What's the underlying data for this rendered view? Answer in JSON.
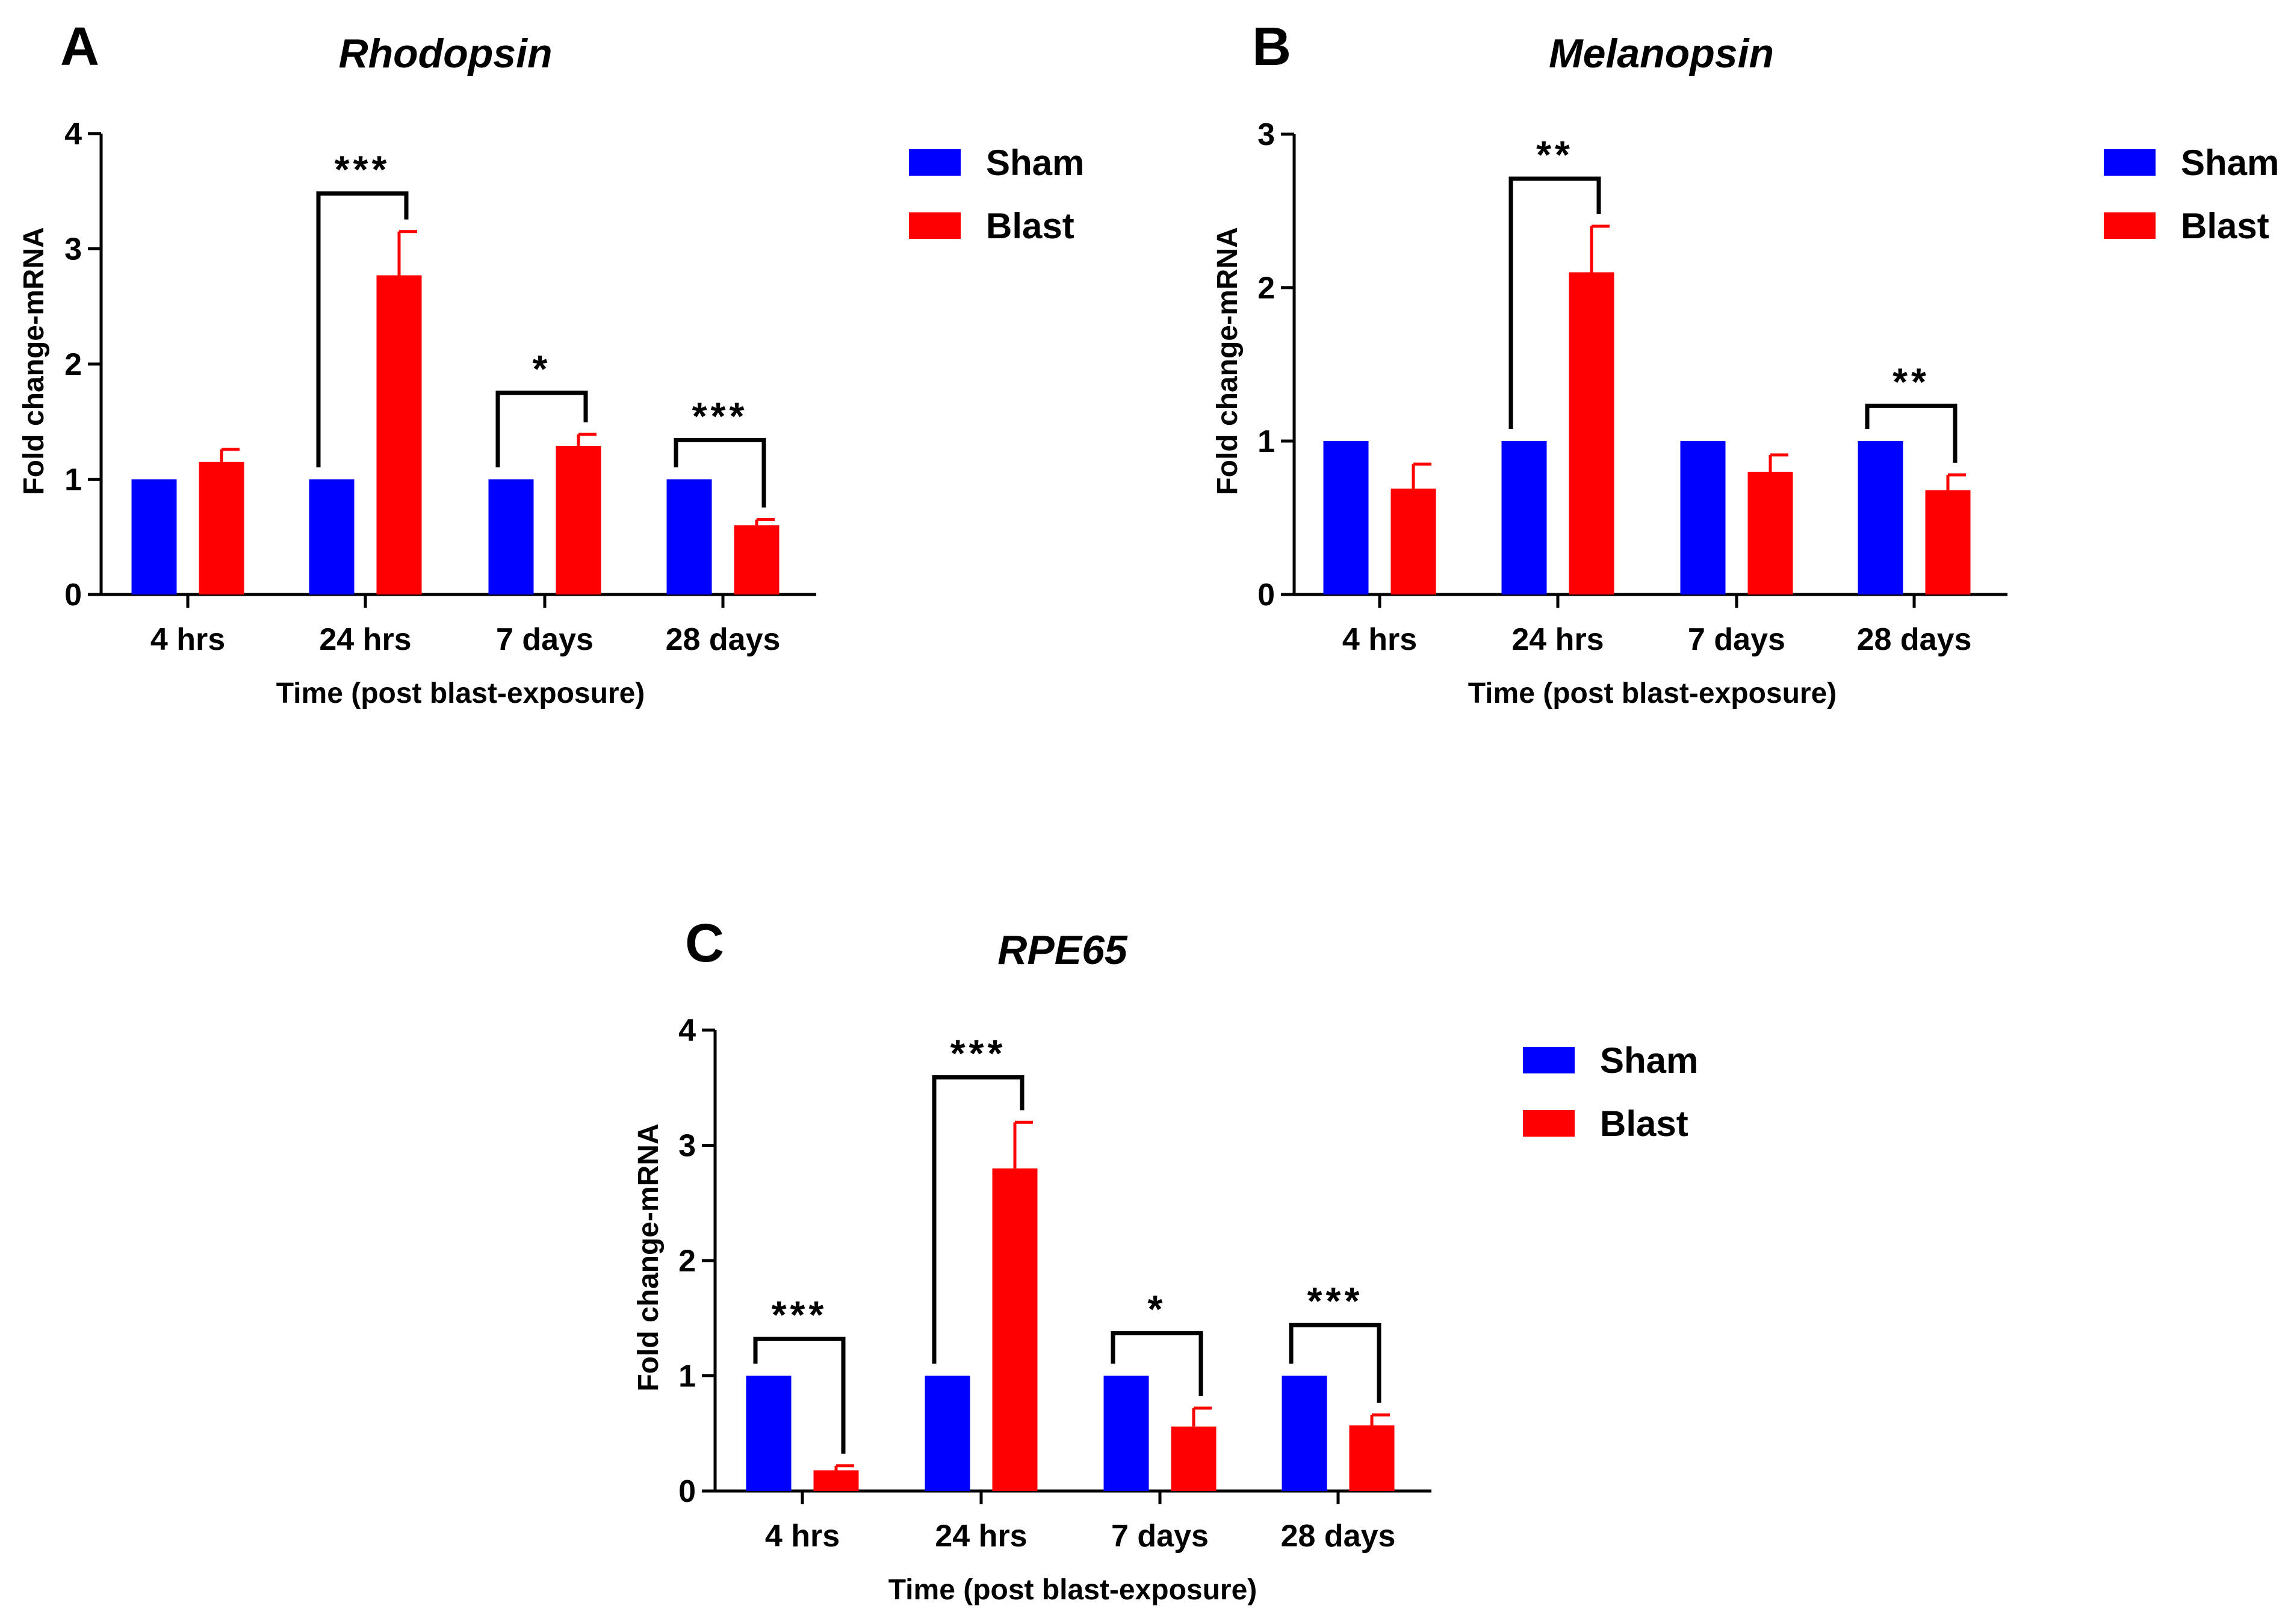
{
  "chart_data": [
    {
      "type": "bar",
      "panel": "A",
      "title": "Rhodopsin",
      "xlabel": "Time (post blast-exposure)",
      "ylabel": "Fold change-mRNA",
      "categories": [
        "4 hrs",
        "24 hrs",
        "7 days",
        "28 days"
      ],
      "ylim": [
        0,
        4
      ],
      "yticks": [
        0,
        1,
        2,
        3,
        4
      ],
      "series": [
        {
          "name": "Sham",
          "color": "#0000FF",
          "values": [
            1.0,
            1.0,
            1.0,
            1.0
          ],
          "errors": [
            0,
            0,
            0,
            0
          ]
        },
        {
          "name": "Blast",
          "color": "#FF0000",
          "values": [
            1.15,
            2.77,
            1.29,
            0.6
          ],
          "errors": [
            0.11,
            0.38,
            0.1,
            0.05
          ]
        }
      ],
      "significance": [
        {
          "category": 1,
          "label": "***",
          "bracket_y": 3.48
        },
        {
          "category": 2,
          "label": "*",
          "bracket_y": 1.75
        },
        {
          "category": 3,
          "label": "***",
          "bracket_y": 1.34
        }
      ],
      "legend_position": "right"
    },
    {
      "type": "bar",
      "panel": "B",
      "title": "Melanopsin",
      "xlabel": "Time (post blast-exposure)",
      "ylabel": "Fold change-mRNA",
      "categories": [
        "4 hrs",
        "24 hrs",
        "7 days",
        "28 days"
      ],
      "ylim": [
        0,
        3
      ],
      "yticks": [
        0,
        1,
        2,
        3
      ],
      "series": [
        {
          "name": "Sham",
          "color": "#0000FF",
          "values": [
            1.0,
            1.0,
            1.0,
            1.0
          ],
          "errors": [
            0,
            0,
            0,
            0
          ]
        },
        {
          "name": "Blast",
          "color": "#FF0000",
          "values": [
            0.69,
            2.1,
            0.8,
            0.68
          ],
          "errors": [
            0.16,
            0.3,
            0.11,
            0.1
          ]
        }
      ],
      "significance": [
        {
          "category": 1,
          "label": "**",
          "bracket_y": 2.71
        },
        {
          "category": 3,
          "label": "**",
          "bracket_y": 1.23
        }
      ],
      "legend_position": "right"
    },
    {
      "type": "bar",
      "panel": "C",
      "title": "RPE65",
      "xlabel": "Time (post blast-exposure)",
      "ylabel": "Fold change-mRNA",
      "categories": [
        "4 hrs",
        "24 hrs",
        "7 days",
        "28 days"
      ],
      "ylim": [
        0,
        4
      ],
      "yticks": [
        0,
        1,
        2,
        3,
        4
      ],
      "series": [
        {
          "name": "Sham",
          "color": "#0000FF",
          "values": [
            1.0,
            1.0,
            1.0,
            1.0
          ],
          "errors": [
            0,
            0,
            0,
            0
          ]
        },
        {
          "name": "Blast",
          "color": "#FF0000",
          "values": [
            0.18,
            2.8,
            0.56,
            0.57
          ],
          "errors": [
            0.04,
            0.4,
            0.16,
            0.09
          ]
        }
      ],
      "significance": [
        {
          "category": 0,
          "label": "***",
          "bracket_y": 1.32
        },
        {
          "category": 1,
          "label": "***",
          "bracket_y": 3.59
        },
        {
          "category": 2,
          "label": "*",
          "bracket_y": 1.37
        },
        {
          "category": 3,
          "label": "***",
          "bracket_y": 1.44
        }
      ],
      "legend_position": "right"
    }
  ]
}
